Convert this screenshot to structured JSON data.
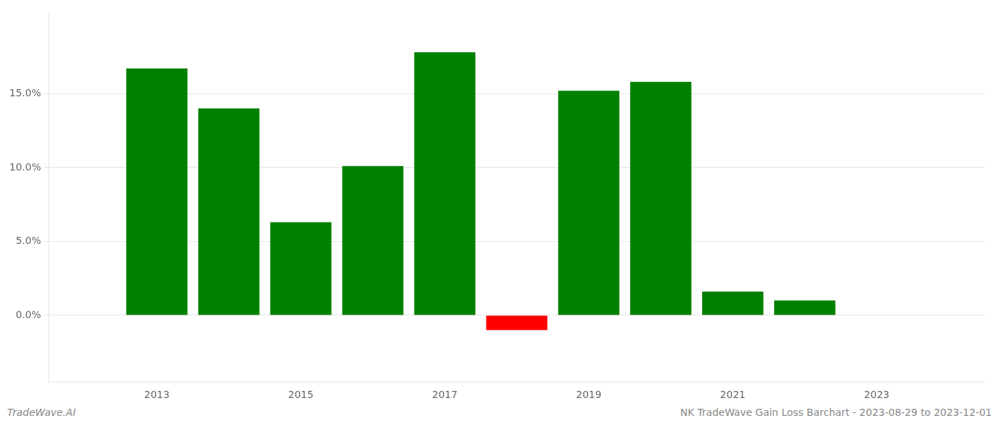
{
  "chart_data": {
    "type": "bar",
    "x": [
      2013,
      2014,
      2015,
      2016,
      2017,
      2018,
      2019,
      2020,
      2021,
      2022
    ],
    "values": [
      0.167,
      0.14,
      0.063,
      0.101,
      0.178,
      -0.01,
      0.152,
      0.158,
      0.016,
      0.01
    ],
    "colors": [
      "#008000",
      "#008000",
      "#008000",
      "#008000",
      "#008000",
      "#ff0000",
      "#008000",
      "#008000",
      "#008000",
      "#008000"
    ],
    "xlim": [
      2011.5,
      2024.5
    ],
    "xticks": [
      2013,
      2015,
      2017,
      2019,
      2021,
      2023
    ],
    "ylim": [
      -0.045,
      0.205
    ],
    "yticks": [
      {
        "value": 0.0,
        "label": "0.0%"
      },
      {
        "value": 0.05,
        "label": "5.0%"
      },
      {
        "value": 0.1,
        "label": "10.0%"
      },
      {
        "value": 0.15,
        "label": "15.0%"
      }
    ],
    "grid": "y",
    "annotations": [
      "TradeWave.AI",
      "NK TradeWave Gain Loss Barchart - 2023-08-29 to 2023-12-01"
    ]
  }
}
